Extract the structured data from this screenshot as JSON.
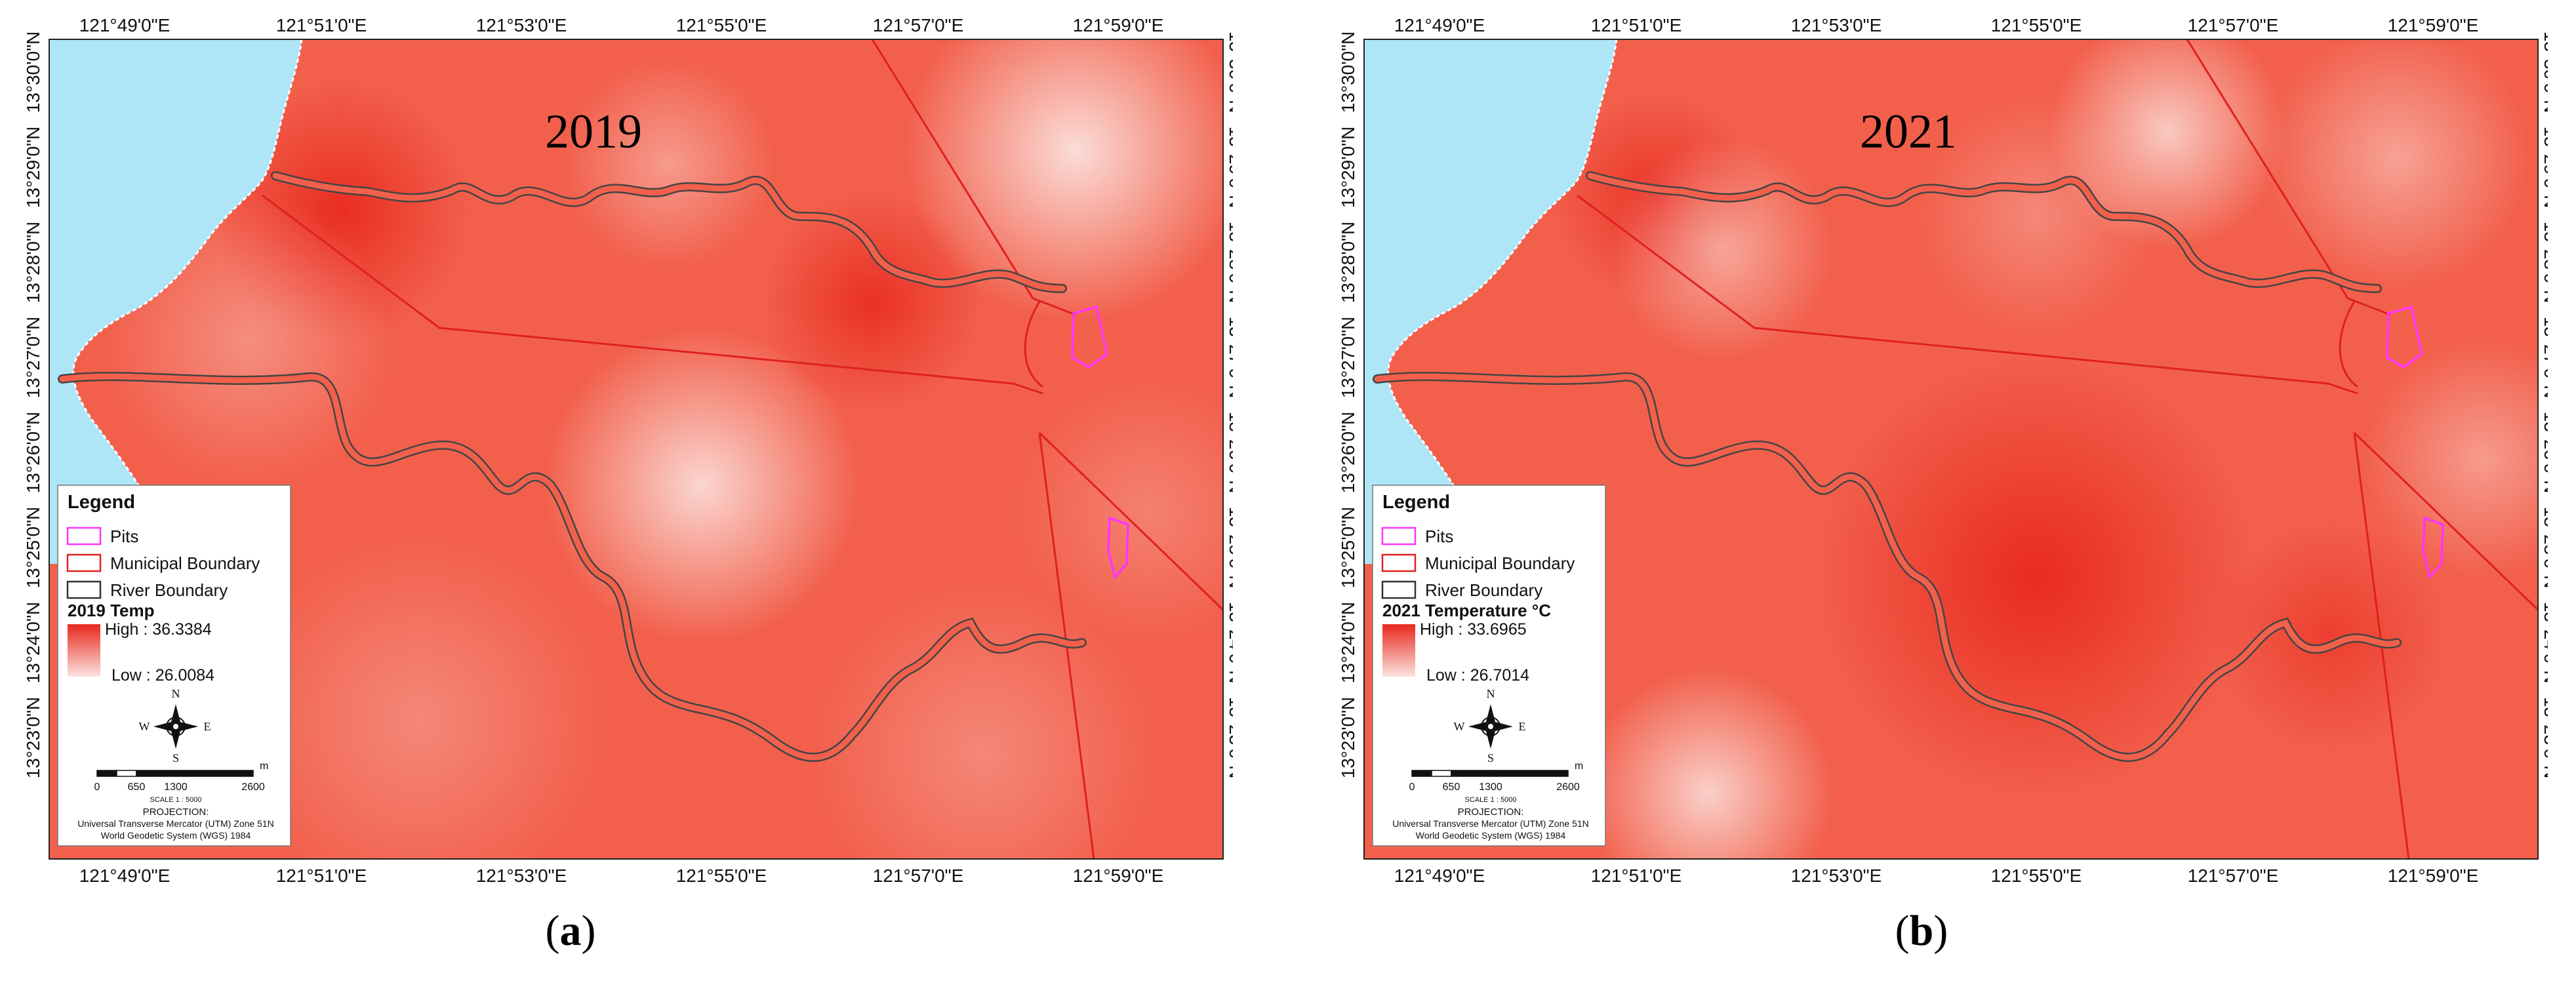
{
  "figure": {
    "panels": [
      {
        "id": "a",
        "year_label": "2019",
        "caption_letter": "a",
        "top_ticks": [
          "121°49'0\"E",
          "121°51'0\"E",
          "121°53'0\"E",
          "121°55'0\"E",
          "121°57'0\"E",
          "121°59'0\"E"
        ],
        "bottom_ticks": [
          "121°49'0\"E",
          "121°51'0\"E",
          "121°53'0\"E",
          "121°55'0\"E",
          "121°57'0\"E",
          "121°59'0\"E"
        ],
        "left_ticks": [
          "13°30'0\"N",
          "13°29'0\"N",
          "13°28'0\"N",
          "13°27'0\"N",
          "13°26'0\"N",
          "13°25'0\"N",
          "13°24'0\"N",
          "13°23'0\"N"
        ],
        "right_ticks": [
          "13°30'0\"N",
          "13°29'0\"N",
          "13°28'0\"N",
          "13°27'0\"N",
          "13°26'0\"N",
          "13°25'0\"N",
          "13°24'0\"N",
          "13°23'0\"N"
        ],
        "legend": {
          "title": "Legend",
          "items": [
            {
              "label": "Pits",
              "color": "#ff33ff"
            },
            {
              "label": "Municipal Boundary",
              "color": "#e02020"
            },
            {
              "label": "River Boundary",
              "color": "#333333"
            }
          ],
          "ramp_title": "2019 Temp",
          "high": "High : 36.3384",
          "low": "Low : 26.0084",
          "north": "N",
          "south": "S",
          "west": "W",
          "east": "E",
          "scale_labels": [
            "0",
            "650",
            "1300",
            "2600"
          ],
          "scale_unit": "m",
          "scale_ratio": "SCALE 1 : 5000",
          "projection_title": "PROJECTION:",
          "projection_line1": "Universal Transverse Mercator (UTM) Zone 51N",
          "projection_line2": "World Geodetic System (WGS) 1984"
        }
      },
      {
        "id": "b",
        "year_label": "2021",
        "caption_letter": "b",
        "top_ticks": [
          "121°49'0\"E",
          "121°51'0\"E",
          "121°53'0\"E",
          "121°55'0\"E",
          "121°57'0\"E",
          "121°59'0\"E"
        ],
        "bottom_ticks": [
          "121°49'0\"E",
          "121°51'0\"E",
          "121°53'0\"E",
          "121°55'0\"E",
          "121°57'0\"E",
          "121°59'0\"E"
        ],
        "left_ticks": [
          "13°30'0\"N",
          "13°29'0\"N",
          "13°28'0\"N",
          "13°27'0\"N",
          "13°26'0\"N",
          "13°25'0\"N",
          "13°24'0\"N",
          "13°23'0\"N"
        ],
        "right_ticks": [
          "13°30'0\"N",
          "13°29'0\"N",
          "13°28'0\"N",
          "13°27'0\"N",
          "13°26'0\"N",
          "13°25'0\"N",
          "13°24'0\"N",
          "13°23'0\"N"
        ],
        "legend": {
          "title": "Legend",
          "items": [
            {
              "label": "Pits",
              "color": "#ff33ff"
            },
            {
              "label": "Municipal Boundary",
              "color": "#e02020"
            },
            {
              "label": "River Boundary",
              "color": "#333333"
            }
          ],
          "ramp_title": "2021 Temperature °C",
          "high": "High : 33.6965",
          "low": "Low : 26.7014",
          "north": "N",
          "south": "S",
          "west": "W",
          "east": "E",
          "scale_labels": [
            "0",
            "650",
            "1300",
            "2600"
          ],
          "scale_unit": "m",
          "scale_ratio": "SCALE 1 : 5000",
          "projection_title": "PROJECTION:",
          "projection_line1": "Universal Transverse Mercator (UTM) Zone 51N",
          "projection_line2": "World Geodetic System (WGS) 1984"
        }
      }
    ],
    "colors": {
      "sea": "#aee6f8",
      "base_red": "#f2604c",
      "hot_red": "#e8281e",
      "cool": "#fbe3df",
      "boundary": "#e02020",
      "river": "#444444",
      "pits": "#ff33ff"
    }
  }
}
